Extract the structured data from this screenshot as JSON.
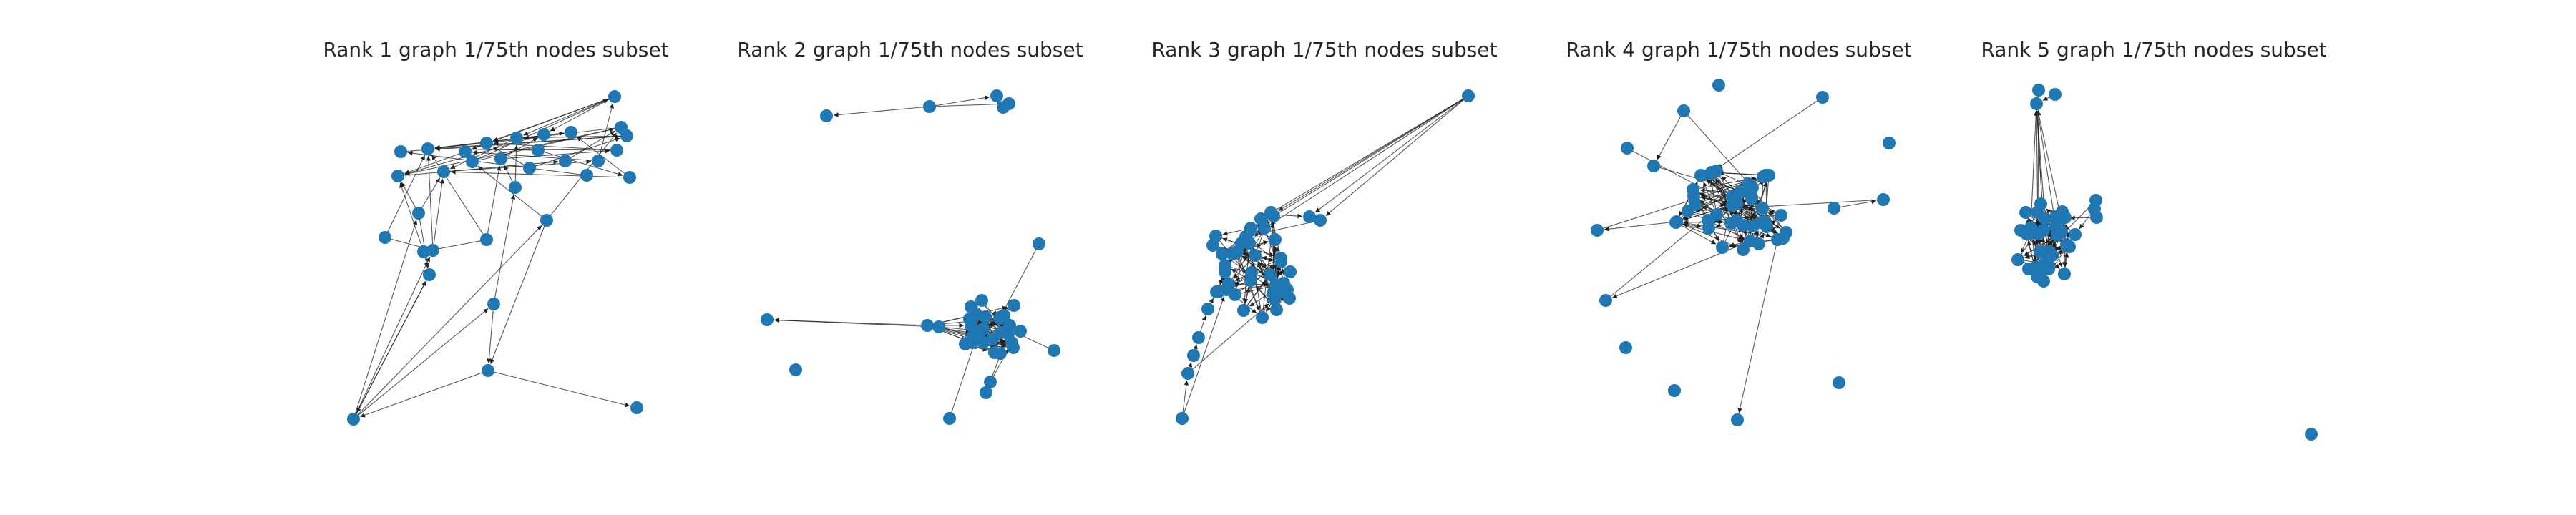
{
  "figure": {
    "node_color": "#1f77b4",
    "edge_color": "#222222",
    "panels": [
      {
        "title": "Rank 1 graph 1/75th nodes subset"
      },
      {
        "title": "Rank 2 graph 1/75th nodes subset"
      },
      {
        "title": "Rank 3 graph 1/75th nodes subset"
      },
      {
        "title": "Rank 4 graph 1/75th nodes subset"
      },
      {
        "title": "Rank 5 graph 1/75th nodes subset"
      }
    ]
  }
}
